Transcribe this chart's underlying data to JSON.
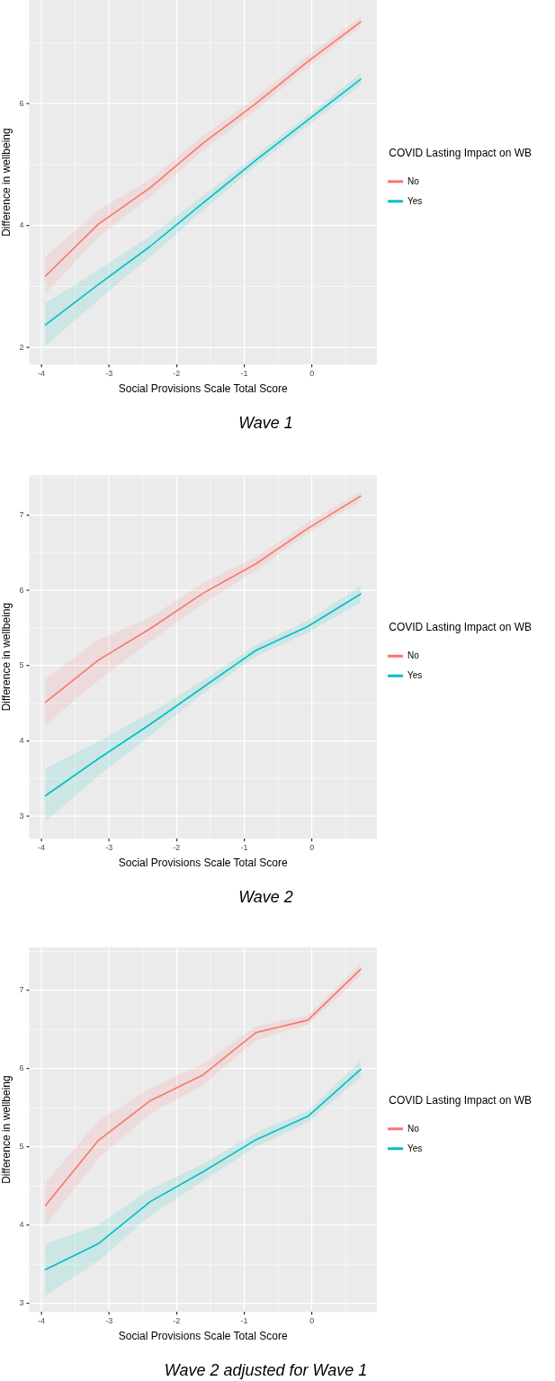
{
  "chart_data": [
    {
      "type": "line",
      "title": "Wave 1",
      "xlabel": "Social Provisions Scale Total Score",
      "ylabel": "Difference in wellbeing",
      "legend_title": "COVID Lasting Impact on WB",
      "legend": "right",
      "grid": true,
      "marker": "none",
      "x": [
        -3.94,
        -3.16,
        -2.39,
        -1.61,
        -0.83,
        -0.06,
        0.72
      ],
      "series": [
        {
          "name": "No",
          "color": "#f8766d",
          "values": [
            3.17,
            4.02,
            4.62,
            5.35,
            6.0,
            6.69,
            7.34
          ],
          "lower": [
            2.88,
            3.81,
            4.47,
            5.23,
            5.89,
            6.6,
            7.26
          ],
          "upper": [
            3.49,
            4.25,
            4.76,
            5.47,
            6.11,
            6.79,
            7.42
          ]
        },
        {
          "name": "Yes",
          "color": "#00bfc4",
          "values": [
            2.37,
            3.03,
            3.66,
            4.37,
            5.07,
            5.73,
            6.4
          ],
          "lower": [
            2.02,
            2.78,
            3.49,
            4.25,
            4.98,
            5.64,
            6.3
          ],
          "upper": [
            2.73,
            3.27,
            3.83,
            4.49,
            5.15,
            5.81,
            6.5
          ]
        }
      ],
      "xlim": [
        -4.18,
        0.96
      ],
      "xticks": [
        -4,
        -3,
        -2,
        -1,
        0
      ],
      "ylim": [
        1.72,
        7.7
      ],
      "yticks": [
        2,
        4,
        6
      ]
    },
    {
      "type": "line",
      "title": "Wave 2",
      "xlabel": "Social Provisions Scale Total Score",
      "ylabel": "Difference in wellbeing",
      "legend_title": "COVID Lasting Impact on WB",
      "legend": "right",
      "grid": true,
      "marker": "none",
      "x": [
        -3.94,
        -3.16,
        -2.39,
        -1.61,
        -0.83,
        -0.06,
        0.72
      ],
      "series": [
        {
          "name": "No",
          "color": "#f8766d",
          "values": [
            4.51,
            5.07,
            5.49,
            5.96,
            6.35,
            6.82,
            7.25
          ],
          "lower": [
            4.21,
            4.8,
            5.32,
            5.82,
            6.26,
            6.76,
            7.18
          ],
          "upper": [
            4.82,
            5.34,
            5.64,
            6.1,
            6.44,
            6.9,
            7.31
          ]
        },
        {
          "name": "Yes",
          "color": "#00bfc4",
          "values": [
            3.27,
            3.76,
            4.22,
            4.71,
            5.2,
            5.52,
            5.95
          ],
          "lower": [
            2.93,
            3.53,
            4.07,
            4.63,
            5.12,
            5.44,
            5.84
          ],
          "upper": [
            3.63,
            3.99,
            4.37,
            4.8,
            5.27,
            5.6,
            6.06
          ]
        }
      ],
      "xlim": [
        -4.18,
        0.96
      ],
      "xticks": [
        -4,
        -3,
        -2,
        -1,
        0
      ],
      "ylim": [
        2.7,
        7.53
      ],
      "yticks": [
        3,
        4,
        5,
        6,
        7
      ]
    },
    {
      "type": "line",
      "title": "Wave 2 adjusted for Wave 1",
      "xlabel": "Social Provisions Scale Total Score",
      "ylabel": "Difference in wellbeing",
      "legend_title": "COVID Lasting Impact on WB",
      "legend": "right",
      "grid": true,
      "marker": "none",
      "x": [
        -3.94,
        -3.16,
        -2.39,
        -1.61,
        -0.83,
        -0.06,
        0.72
      ],
      "series": [
        {
          "name": "No",
          "color": "#f8766d",
          "values": [
            4.25,
            5.08,
            5.59,
            5.92,
            6.46,
            6.62,
            7.27
          ],
          "lower": [
            3.99,
            4.85,
            5.42,
            5.79,
            6.36,
            6.56,
            7.19
          ],
          "upper": [
            4.54,
            5.33,
            5.75,
            6.06,
            6.54,
            6.68,
            7.34
          ]
        },
        {
          "name": "Yes",
          "color": "#00bfc4",
          "values": [
            3.43,
            3.76,
            4.3,
            4.68,
            5.09,
            5.39,
            5.99
          ],
          "lower": [
            3.1,
            3.54,
            4.12,
            4.56,
            5.0,
            5.31,
            5.89
          ],
          "upper": [
            3.76,
            4.0,
            4.46,
            4.78,
            5.18,
            5.46,
            6.1
          ]
        }
      ],
      "xlim": [
        -4.18,
        0.96
      ],
      "xticks": [
        -4,
        -3,
        -2,
        -1,
        0
      ],
      "ylim": [
        2.89,
        7.55
      ],
      "yticks": [
        3,
        4,
        5,
        6,
        7
      ]
    }
  ]
}
